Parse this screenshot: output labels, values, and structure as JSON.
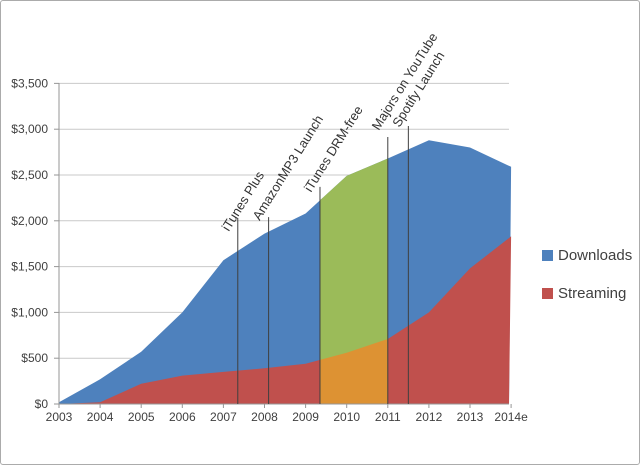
{
  "frame": {
    "background": "#ffffff",
    "border_color": "#ababab"
  },
  "legend": {
    "position": "right",
    "items": [
      {
        "label": "Downloads",
        "color": "#4e81bd"
      },
      {
        "label": "Streaming",
        "color": "#c0504d"
      }
    ]
  },
  "chart_data": {
    "type": "area",
    "mode": "overlapping",
    "title": "",
    "xlabel": "",
    "ylabel": "",
    "categories": [
      "2003",
      "2004",
      "2005",
      "2006",
      "2007",
      "2008",
      "2009",
      "2010",
      "2011",
      "2012",
      "2013",
      "2014e"
    ],
    "series": [
      {
        "name": "Downloads",
        "color": "#4e81bd",
        "highlight_color": "#9bbb59",
        "values": [
          20,
          270,
          570,
          1000,
          1570,
          1860,
          2080,
          2490,
          2680,
          2880,
          2800,
          2590
        ]
      },
      {
        "name": "Streaming",
        "color": "#c0504d",
        "highlight_color": "#dd9233",
        "values": [
          0,
          20,
          220,
          310,
          350,
          390,
          440,
          560,
          710,
          1000,
          1480,
          1830
        ]
      }
    ],
    "ylim": [
      0,
      3500
    ],
    "y_tick_step": 500,
    "y_tick_labels": [
      "$0",
      "$500",
      "$1,000",
      "$1,500",
      "$2,000",
      "$2,500",
      "$3,000",
      "$3,500"
    ],
    "grid": true,
    "highlight_region": {
      "from_year": 2009.35,
      "to_year": 2011.0
    },
    "annotations": [
      {
        "label": "iTunes Plus",
        "year": 2007.35,
        "top_value": 2030,
        "label_dy": 14
      },
      {
        "label": "AmazonMP3 Launch",
        "year": 2008.1,
        "top_value": 2040,
        "label_dy": 4
      },
      {
        "label": "iTunes DRM-free",
        "year": 2009.35,
        "top_value": 2370,
        "label_dy": 6
      },
      {
        "label": "Majors on YouTube",
        "year": 2011.0,
        "top_value": 2915,
        "label_dy": -6
      },
      {
        "label": "Spotify Launch",
        "year": 2011.5,
        "top_value": 3035,
        "label_dy": 2
      }
    ],
    "colors": {
      "gridline": "#c9c9c9",
      "axis": "#969696",
      "annotation_line": "#3f3f3f",
      "annotation_text": "#333333",
      "axis_text": "#404040"
    }
  }
}
